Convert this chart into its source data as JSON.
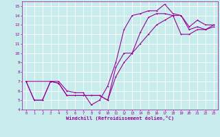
{
  "xlabel": "Windchill (Refroidissement éolien,°C)",
  "background_color": "#c8ecec",
  "line_color": "#990099",
  "grid_color": "#ffffff",
  "xlim": [
    -0.5,
    23.5
  ],
  "ylim": [
    4,
    15.5
  ],
  "xticks": [
    0,
    1,
    2,
    3,
    4,
    5,
    6,
    7,
    8,
    9,
    10,
    11,
    12,
    13,
    14,
    15,
    16,
    17,
    18,
    19,
    20,
    21,
    22,
    23
  ],
  "yticks": [
    4,
    5,
    6,
    7,
    8,
    9,
    10,
    11,
    12,
    13,
    14,
    15
  ],
  "line1_x": [
    0,
    1,
    2,
    3,
    4,
    5,
    6,
    7,
    8,
    9,
    10,
    11,
    12,
    13,
    14,
    15,
    16,
    17,
    18,
    19,
    20,
    21,
    22,
    23
  ],
  "line1_y": [
    7,
    5,
    5,
    7,
    7,
    6,
    5.8,
    5.8,
    4.5,
    5,
    6.5,
    9,
    12.5,
    14,
    14.2,
    14.5,
    14.5,
    15.2,
    14.2,
    14,
    12.8,
    13.5,
    13,
    13
  ],
  "line2_x": [
    0,
    1,
    2,
    3,
    4,
    5,
    6,
    7,
    8,
    9,
    10,
    11,
    12,
    13,
    14,
    15,
    16,
    17,
    18,
    19,
    20,
    21,
    22,
    23
  ],
  "line2_y": [
    7,
    5,
    5,
    7,
    6.8,
    5.5,
    5.5,
    5.5,
    5.5,
    5.5,
    5,
    8.5,
    10,
    10,
    12.2,
    13.8,
    14.2,
    14.2,
    14,
    14,
    12.5,
    12.8,
    12.5,
    13
  ],
  "line3_x": [
    0,
    3,
    4,
    5,
    6,
    7,
    8,
    9,
    10,
    11,
    12,
    13,
    14,
    15,
    16,
    17,
    18,
    19,
    20,
    21,
    22,
    23
  ],
  "line3_y": [
    7,
    7,
    6.8,
    5.5,
    5.5,
    5.5,
    5.5,
    5.5,
    5,
    7.5,
    9,
    10,
    11,
    12,
    13,
    13.5,
    14,
    12,
    12,
    12.5,
    12.5,
    12.8
  ]
}
